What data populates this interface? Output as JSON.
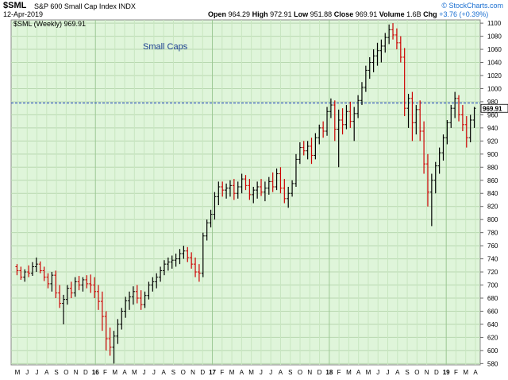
{
  "header": {
    "symbol": "$SML",
    "description": "S&P 600 Small Cap Index",
    "exchange": "INDX",
    "date": "12-Apr-2019",
    "brand": "© StockCharts.com",
    "stats": {
      "open_label": "Open",
      "open": "964.29",
      "high_label": "High",
      "high": "972.91",
      "low_label": "Low",
      "low": "951.88",
      "close_label": "Close",
      "close": "969.91",
      "volume_label": "Volume",
      "volume": "1.6B",
      "chg_label": "Chg",
      "chg": "+3.76 (+0.39%)"
    }
  },
  "chart_data": {
    "type": "ohlc",
    "legend": "$SML (Weekly) 969.91",
    "annotation": "Small Caps",
    "last_value_label": "969.91",
    "reference_line": 978,
    "ylim": [
      578,
      1105
    ],
    "y_ticks": [
      580,
      600,
      620,
      640,
      660,
      680,
      700,
      720,
      740,
      760,
      780,
      800,
      820,
      840,
      860,
      880,
      900,
      920,
      940,
      960,
      980,
      1000,
      1020,
      1040,
      1060,
      1080,
      1100
    ],
    "x_ticks": [
      "M",
      "J",
      "J",
      "A",
      "S",
      "O",
      "N",
      "D",
      "16",
      "F",
      "M",
      "A",
      "M",
      "J",
      "J",
      "A",
      "S",
      "O",
      "N",
      "D",
      "17",
      "F",
      "M",
      "A",
      "M",
      "J",
      "J",
      "A",
      "S",
      "O",
      "N",
      "D",
      "18",
      "F",
      "M",
      "A",
      "M",
      "J",
      "J",
      "A",
      "S",
      "O",
      "N",
      "D",
      "19",
      "F",
      "M",
      "A"
    ],
    "colors": {
      "up": "#000000",
      "down": "#cc0000",
      "background": "#dff5da",
      "reference": "#1a3fbf"
    },
    "series": [
      {
        "values": [
          [
            728,
            732,
            715,
            722
          ],
          [
            722,
            728,
            708,
            712
          ],
          [
            712,
            724,
            705,
            720
          ],
          [
            720,
            730,
            712,
            718
          ],
          [
            718,
            735,
            714,
            728
          ],
          [
            728,
            742,
            720,
            732
          ],
          [
            732,
            736,
            718,
            722
          ],
          [
            722,
            728,
            706,
            712
          ],
          [
            712,
            718,
            695,
            702
          ],
          [
            702,
            720,
            690,
            715
          ],
          [
            715,
            722,
            680,
            688
          ],
          [
            688,
            700,
            665,
            672
          ],
          [
            672,
            685,
            640,
            678
          ],
          [
            678,
            700,
            670,
            695
          ],
          [
            695,
            705,
            680,
            688
          ],
          [
            688,
            712,
            682,
            705
          ],
          [
            705,
            714,
            692,
            700
          ],
          [
            700,
            712,
            690,
            708
          ],
          [
            708,
            715,
            695,
            702
          ],
          [
            702,
            716,
            688,
            700
          ],
          [
            700,
            712,
            680,
            690
          ],
          [
            690,
            700,
            662,
            675
          ],
          [
            675,
            690,
            630,
            652
          ],
          [
            652,
            660,
            600,
            618
          ],
          [
            618,
            635,
            592,
            605
          ],
          [
            605,
            630,
            580,
            622
          ],
          [
            622,
            648,
            610,
            640
          ],
          [
            640,
            665,
            632,
            660
          ],
          [
            660,
            682,
            650,
            676
          ],
          [
            676,
            690,
            662,
            682
          ],
          [
            682,
            698,
            670,
            690
          ],
          [
            690,
            700,
            672,
            680
          ],
          [
            680,
            692,
            662,
            670
          ],
          [
            670,
            690,
            665,
            684
          ],
          [
            684,
            705,
            678,
            700
          ],
          [
            700,
            712,
            690,
            705
          ],
          [
            705,
            718,
            695,
            712
          ],
          [
            712,
            728,
            705,
            722
          ],
          [
            722,
            738,
            715,
            732
          ],
          [
            732,
            742,
            722,
            735
          ],
          [
            735,
            745,
            725,
            738
          ],
          [
            738,
            748,
            728,
            740
          ],
          [
            740,
            755,
            732,
            748
          ],
          [
            748,
            760,
            740,
            752
          ],
          [
            752,
            758,
            735,
            742
          ],
          [
            742,
            750,
            725,
            732
          ],
          [
            732,
            742,
            712,
            720
          ],
          [
            720,
            732,
            705,
            718
          ],
          [
            718,
            780,
            712,
            775
          ],
          [
            775,
            800,
            768,
            795
          ],
          [
            795,
            815,
            788,
            808
          ],
          [
            808,
            842,
            800,
            835
          ],
          [
            835,
            858,
            822,
            850
          ],
          [
            850,
            858,
            835,
            845
          ],
          [
            845,
            855,
            832,
            848
          ],
          [
            848,
            860,
            835,
            852
          ],
          [
            852,
            862,
            830,
            840
          ],
          [
            840,
            858,
            832,
            850
          ],
          [
            850,
            870,
            840,
            862
          ],
          [
            862,
            868,
            845,
            852
          ],
          [
            852,
            862,
            830,
            838
          ],
          [
            838,
            850,
            825,
            845
          ],
          [
            845,
            858,
            832,
            850
          ],
          [
            850,
            862,
            836,
            842
          ],
          [
            842,
            858,
            828,
            848
          ],
          [
            848,
            865,
            838,
            858
          ],
          [
            858,
            872,
            842,
            850
          ],
          [
            850,
            878,
            845,
            870
          ],
          [
            870,
            880,
            840,
            848
          ],
          [
            848,
            862,
            825,
            832
          ],
          [
            832,
            850,
            818,
            840
          ],
          [
            840,
            860,
            835,
            855
          ],
          [
            855,
            900,
            850,
            892
          ],
          [
            892,
            918,
            885,
            910
          ],
          [
            910,
            920,
            898,
            905
          ],
          [
            905,
            920,
            892,
            912
          ],
          [
            912,
            925,
            885,
            898
          ],
          [
            898,
            932,
            892,
            925
          ],
          [
            925,
            945,
            915,
            940
          ],
          [
            940,
            950,
            925,
            935
          ],
          [
            935,
            972,
            928,
            965
          ],
          [
            965,
            985,
            955,
            975
          ],
          [
            975,
            982,
            920,
            938
          ],
          [
            938,
            968,
            880,
            952
          ],
          [
            952,
            970,
            930,
            945
          ],
          [
            945,
            975,
            938,
            965
          ],
          [
            965,
            980,
            940,
            950
          ],
          [
            950,
            972,
            920,
            962
          ],
          [
            962,
            990,
            955,
            982
          ],
          [
            982,
            1010,
            975,
            1002
          ],
          [
            1002,
            1035,
            995,
            1028
          ],
          [
            1028,
            1048,
            1015,
            1040
          ],
          [
            1040,
            1060,
            1025,
            1050
          ],
          [
            1050,
            1070,
            1035,
            1058
          ],
          [
            1058,
            1075,
            1040,
            1065
          ],
          [
            1065,
            1085,
            1055,
            1078
          ],
          [
            1078,
            1098,
            1068,
            1090
          ],
          [
            1090,
            1100,
            1075,
            1082
          ],
          [
            1082,
            1092,
            1060,
            1070
          ],
          [
            1070,
            1080,
            1040,
            1048
          ],
          [
            1048,
            1062,
            958,
            970
          ],
          [
            970,
            992,
            940,
            985
          ],
          [
            985,
            995,
            920,
            948
          ],
          [
            948,
            975,
            930,
            968
          ],
          [
            968,
            982,
            920,
            935
          ],
          [
            935,
            950,
            870,
            885
          ],
          [
            885,
            900,
            820,
            842
          ],
          [
            842,
            870,
            790,
            860
          ],
          [
            860,
            888,
            840,
            882
          ],
          [
            882,
            910,
            870,
            902
          ],
          [
            902,
            930,
            890,
            925
          ],
          [
            925,
            952,
            915,
            948
          ],
          [
            948,
            975,
            940,
            970
          ],
          [
            970,
            995,
            955,
            985
          ],
          [
            985,
            990,
            950,
            960
          ],
          [
            960,
            975,
            935,
            945
          ],
          [
            945,
            958,
            910,
            925
          ],
          [
            925,
            960,
            918,
            952
          ],
          [
            952,
            972,
            940,
            969.91
          ]
        ]
      }
    ]
  }
}
